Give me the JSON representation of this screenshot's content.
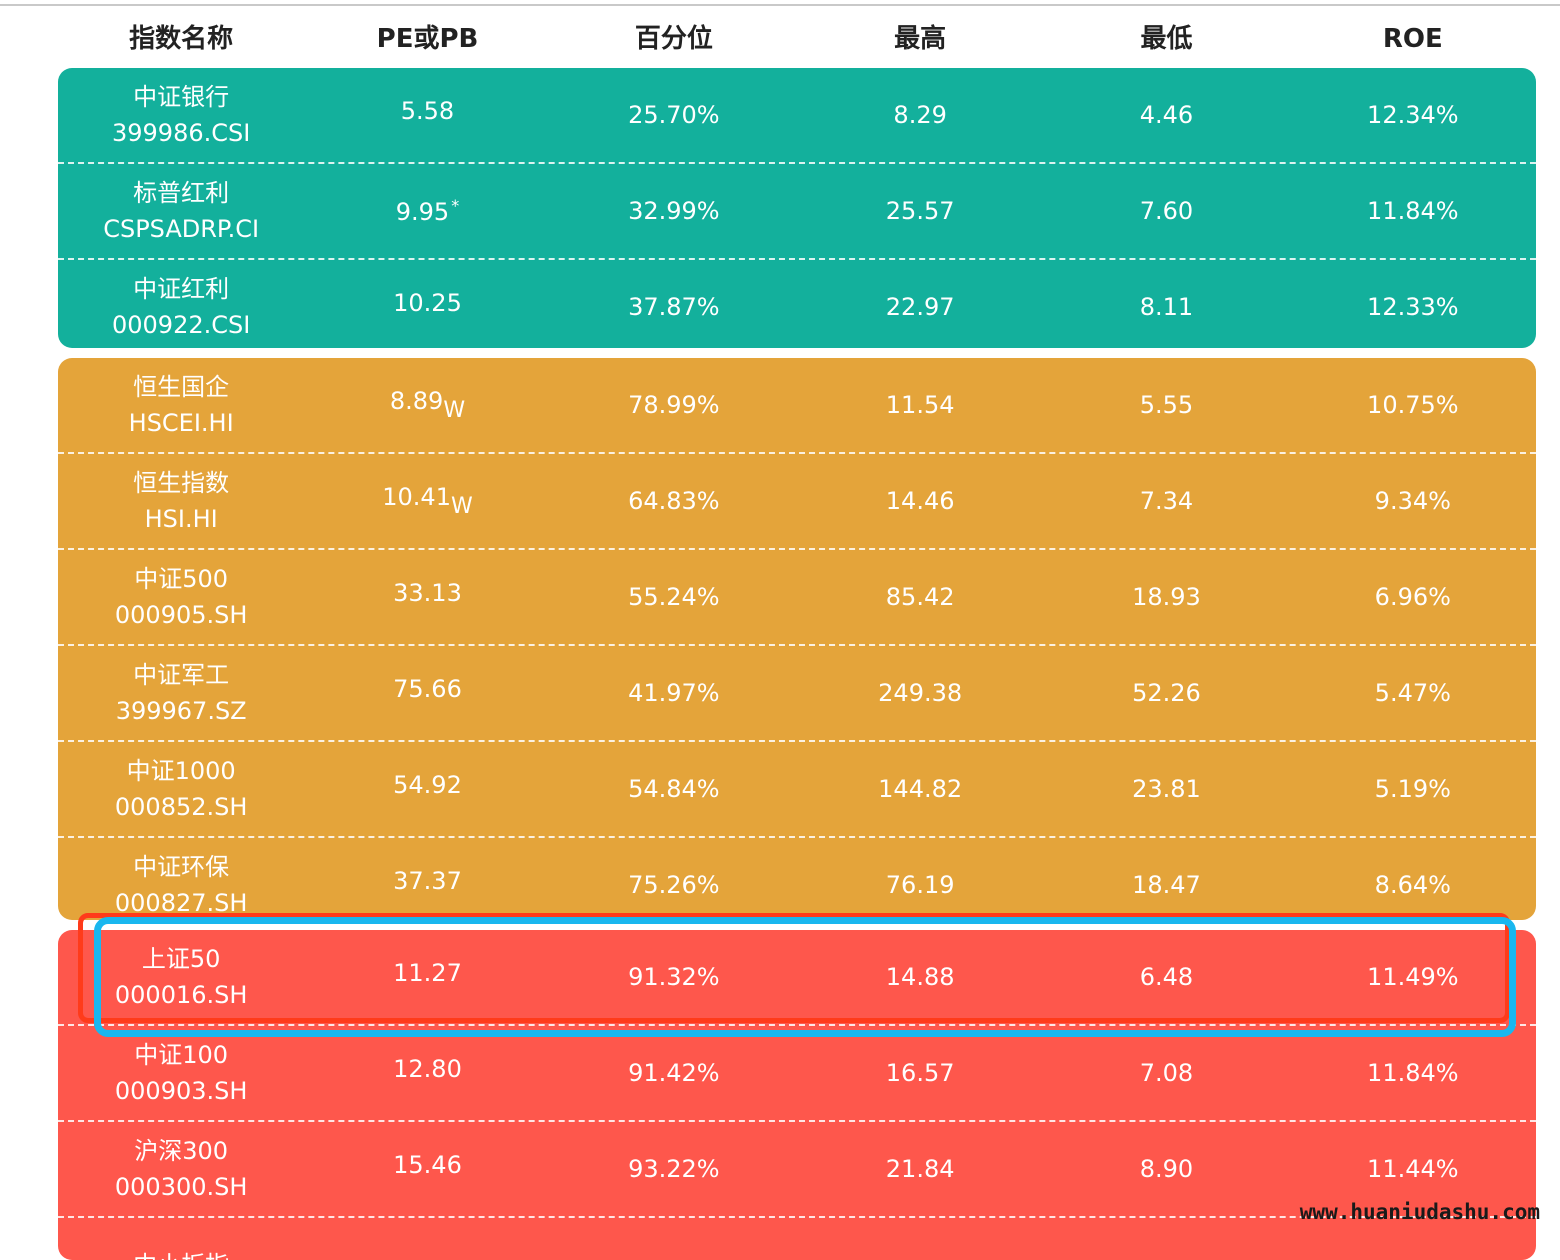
{
  "headers": [
    "指数名称",
    "PE或PB",
    "百分位",
    "最高",
    "最低",
    "ROE"
  ],
  "colors": {
    "green": "#13b09c",
    "orange": "#e4a43a",
    "red": "#fe574c",
    "highlight_red": "#ff3b1a",
    "highlight_blue": "#19b7ef"
  },
  "groups": [
    {
      "color": "green",
      "rows": [
        {
          "name": "中证银行",
          "code": "399986.CSI",
          "pe": "5.58",
          "mark": "",
          "pct": "25.70%",
          "high": "8.29",
          "low": "4.46",
          "roe": "12.34%"
        },
        {
          "name": "标普红利",
          "code": "CSPSADRP.CI",
          "pe": "9.95",
          "mark": "*",
          "pct": "32.99%",
          "high": "25.57",
          "low": "7.60",
          "roe": "11.84%"
        },
        {
          "name": "中证红利",
          "code": "000922.CSI",
          "pe": "10.25",
          "mark": "",
          "pct": "37.87%",
          "high": "22.97",
          "low": "8.11",
          "roe": "12.33%"
        }
      ]
    },
    {
      "color": "orange",
      "rows": [
        {
          "name": "恒生国企",
          "code": "HSCEI.HI",
          "pe": "8.89",
          "mark": "W",
          "pct": "78.99%",
          "high": "11.54",
          "low": "5.55",
          "roe": "10.75%"
        },
        {
          "name": "恒生指数",
          "code": "HSI.HI",
          "pe": "10.41",
          "mark": "W",
          "pct": "64.83%",
          "high": "14.46",
          "low": "7.34",
          "roe": "9.34%"
        },
        {
          "name": "中证500",
          "code": "000905.SH",
          "pe": "33.13",
          "mark": "",
          "pct": "55.24%",
          "high": "85.42",
          "low": "18.93",
          "roe": "6.96%"
        },
        {
          "name": "中证军工",
          "code": "399967.SZ",
          "pe": "75.66",
          "mark": "",
          "pct": "41.97%",
          "high": "249.38",
          "low": "52.26",
          "roe": "5.47%"
        },
        {
          "name": "中证1000",
          "code": "000852.SH",
          "pe": "54.92",
          "mark": "",
          "pct": "54.84%",
          "high": "144.82",
          "low": "23.81",
          "roe": "5.19%"
        },
        {
          "name": "中证环保",
          "code": "000827.SH",
          "pe": "37.37",
          "mark": "",
          "pct": "75.26%",
          "high": "76.19",
          "low": "18.47",
          "roe": "8.64%"
        }
      ]
    },
    {
      "color": "red",
      "rows": [
        {
          "name": "上证50",
          "code": "000016.SH",
          "pe": "11.27",
          "mark": "",
          "pct": "91.32%",
          "high": "14.88",
          "low": "6.48",
          "roe": "11.49%"
        },
        {
          "name": "中证100",
          "code": "000903.SH",
          "pe": "12.80",
          "mark": "",
          "pct": "91.42%",
          "high": "16.57",
          "low": "7.08",
          "roe": "11.84%"
        },
        {
          "name": "沪深300",
          "code": "000300.SH",
          "pe": "15.46",
          "mark": "",
          "pct": "93.22%",
          "high": "21.84",
          "low": "8.90",
          "roe": "11.44%"
        },
        {
          "name": "中小板指",
          "code": "",
          "pe": "",
          "mark": "",
          "pct": "",
          "high": "",
          "low": "",
          "roe": ""
        }
      ]
    }
  ],
  "watermark": "www.huaniudashu.com"
}
